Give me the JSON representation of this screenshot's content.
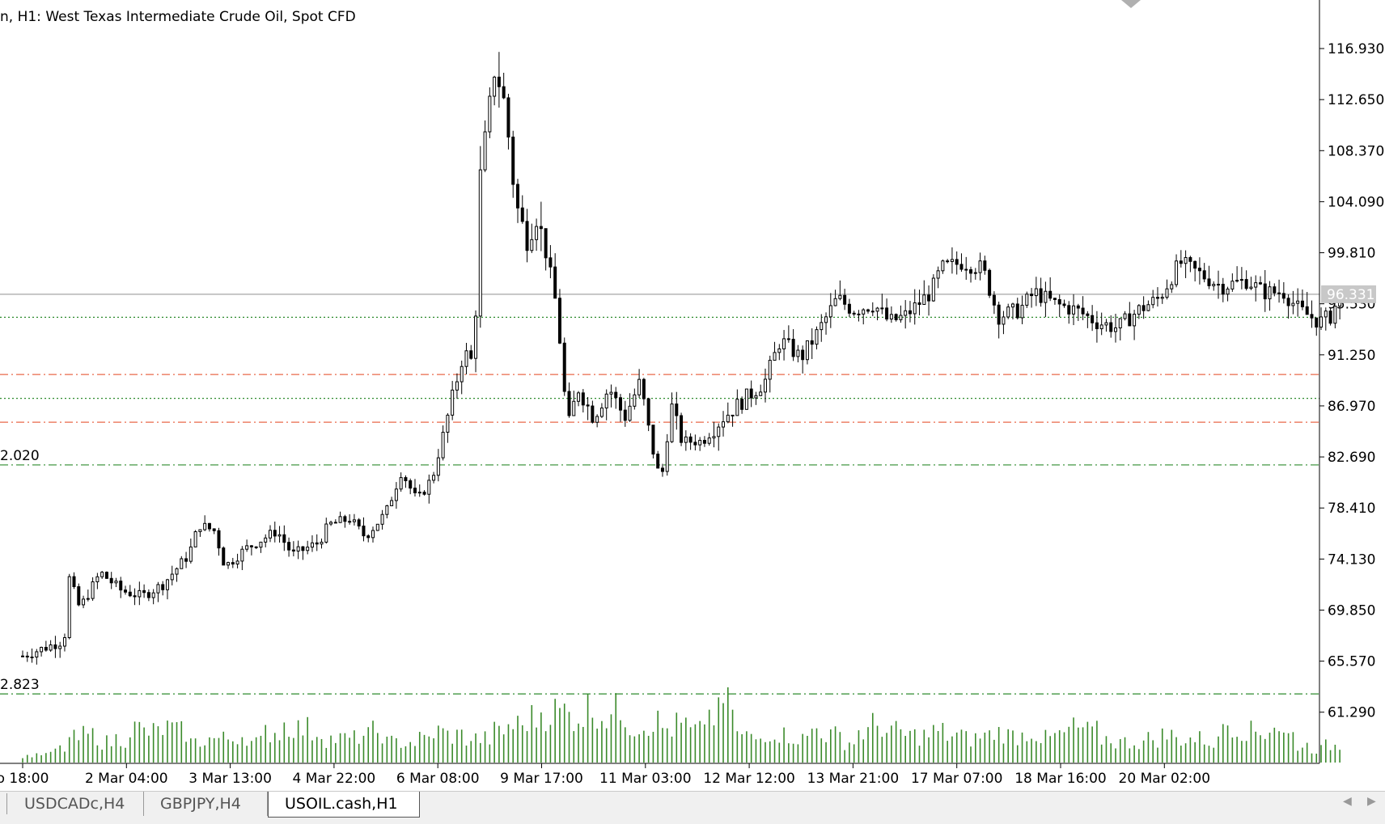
{
  "chart_title": "n, H1:  West Texas Intermediate Crude Oil, Spot CFD",
  "tabs": [
    {
      "label": "USDCADc,H4",
      "active": false
    },
    {
      "label": "GBPJPY,H4",
      "active": false
    },
    {
      "label": "USOIL.cash,H1",
      "active": true
    }
  ],
  "current_price_label": "96.331",
  "level_labels": [
    {
      "text": "2.020",
      "price": 82.02
    },
    {
      "text": "2.823",
      "price": 62.823
    }
  ],
  "chart_data": {
    "type": "candlestick",
    "symbol": "USOIL.cash",
    "timeframe": "H1",
    "title": "n, H1:  West Texas Intermediate Crude Oil, Spot CFD",
    "ylim": [
      57.0,
      121.0
    ],
    "y_ticks": [
      116.93,
      112.65,
      108.37,
      104.09,
      99.81,
      95.53,
      91.25,
      86.97,
      82.69,
      78.41,
      74.13,
      69.85,
      65.57,
      61.29
    ],
    "y_tick_labels": [
      "116.930",
      "112.650",
      "108.370",
      "104.090",
      "99.810",
      "95.530",
      "91.250",
      "86.970",
      "82.690",
      "78.410",
      "74.130",
      "69.850",
      "65.570",
      "61.290"
    ],
    "x_tick_labels": [
      "o 18:00",
      "2 Mar 04:00",
      "3 Mar 13:00",
      "4 Mar 22:00",
      "6 Mar 08:00",
      "9 Mar 17:00",
      "11 Mar 03:00",
      "12 Mar 12:00",
      "13 Mar 21:00",
      "17 Mar 07:00",
      "18 Mar 16:00",
      "20 Mar 02:00"
    ],
    "x_tick_positions": [
      0.0,
      1.0,
      2.0,
      3.0,
      4.0,
      5.0,
      6.0,
      7.0,
      8.0,
      9.0,
      10.0,
      11.0
    ],
    "current_price": 96.331,
    "horizontal_lines": [
      {
        "price": 94.4,
        "style": "dotted",
        "color": "#2e8b2e"
      },
      {
        "price": 89.6,
        "style": "dashdot",
        "color": "#e8694a"
      },
      {
        "price": 87.6,
        "style": "dotted",
        "color": "#2e8b2e"
      },
      {
        "price": 85.6,
        "style": "dashdot",
        "color": "#e8694a"
      },
      {
        "price": 82.02,
        "style": "dashdot",
        "color": "#2e8b2e"
      },
      {
        "price": 62.823,
        "style": "dashdot",
        "color": "#2e8b2e"
      }
    ],
    "price_path": [
      [
        0.0,
        66.0
      ],
      [
        0.4,
        67.3
      ],
      [
        0.45,
        72.5
      ],
      [
        0.55,
        70.0
      ],
      [
        0.75,
        73.0
      ],
      [
        0.95,
        71.5
      ],
      [
        1.15,
        71.0
      ],
      [
        1.35,
        72.0
      ],
      [
        1.6,
        74.5
      ],
      [
        1.7,
        77.0
      ],
      [
        1.85,
        76.5
      ],
      [
        1.95,
        73.5
      ],
      [
        2.15,
        75.0
      ],
      [
        2.45,
        76.5
      ],
      [
        2.6,
        74.5
      ],
      [
        2.85,
        75.5
      ],
      [
        2.95,
        77.0
      ],
      [
        3.15,
        77.5
      ],
      [
        3.3,
        76.0
      ],
      [
        3.5,
        78.0
      ],
      [
        3.65,
        81.5
      ],
      [
        3.8,
        79.0
      ],
      [
        3.95,
        81.0
      ],
      [
        4.05,
        84.5
      ],
      [
        4.15,
        88.0
      ],
      [
        4.25,
        91.5
      ],
      [
        4.35,
        90.5
      ],
      [
        4.4,
        105.5
      ],
      [
        4.5,
        112.0
      ],
      [
        4.55,
        115.5
      ],
      [
        4.65,
        112.0
      ],
      [
        4.75,
        104.0
      ],
      [
        4.85,
        101.0
      ],
      [
        4.95,
        103.0
      ],
      [
        5.05,
        99.5
      ],
      [
        5.15,
        95.0
      ],
      [
        5.25,
        85.0
      ],
      [
        5.35,
        88.5
      ],
      [
        5.5,
        86.0
      ],
      [
        5.65,
        88.5
      ],
      [
        5.8,
        86.0
      ],
      [
        5.95,
        89.0
      ],
      [
        6.05,
        84.0
      ],
      [
        6.15,
        80.5
      ],
      [
        6.25,
        87.0
      ],
      [
        6.35,
        84.0
      ],
      [
        6.55,
        84.0
      ],
      [
        6.75,
        86.0
      ],
      [
        6.95,
        87.5
      ],
      [
        7.15,
        89.0
      ],
      [
        7.3,
        92.5
      ],
      [
        7.5,
        91.0
      ],
      [
        7.65,
        93.0
      ],
      [
        7.85,
        96.0
      ],
      [
        8.0,
        95.0
      ],
      [
        8.2,
        95.5
      ],
      [
        8.35,
        94.0
      ],
      [
        8.5,
        94.5
      ],
      [
        8.75,
        96.5
      ],
      [
        8.85,
        98.5
      ],
      [
        9.05,
        99.0
      ],
      [
        9.25,
        98.5
      ],
      [
        9.4,
        94.5
      ],
      [
        9.6,
        95.0
      ],
      [
        9.75,
        96.5
      ],
      [
        9.95,
        95.5
      ],
      [
        10.15,
        95.0
      ],
      [
        10.35,
        94.0
      ],
      [
        10.55,
        93.5
      ],
      [
        10.75,
        95.0
      ],
      [
        10.95,
        96.0
      ],
      [
        11.15,
        99.0
      ],
      [
        11.35,
        98.0
      ],
      [
        11.55,
        97.0
      ],
      [
        11.8,
        97.5
      ],
      [
        11.95,
        96.5
      ],
      [
        12.15,
        96.5
      ],
      [
        12.3,
        95.0
      ],
      [
        12.5,
        94.0
      ],
      [
        12.6,
        94.5
      ],
      [
        12.7,
        96.331
      ]
    ],
    "volume_relative": [
      0.1,
      0.12,
      0.2,
      0.35,
      0.4,
      0.3,
      0.35,
      0.5,
      0.45,
      0.5,
      0.45,
      0.3,
      0.35,
      0.35,
      0.4,
      0.3,
      0.45,
      0.55,
      0.5,
      0.45,
      0.35,
      0.35,
      0.4,
      0.45,
      0.3,
      0.3,
      0.35,
      0.45,
      0.4,
      0.35,
      0.35,
      0.45,
      0.55,
      0.65,
      0.75,
      0.75,
      0.7,
      0.8,
      0.7,
      0.75,
      0.55,
      0.6,
      0.5,
      0.55,
      0.45,
      0.7,
      0.9,
      0.4,
      0.35,
      0.45,
      0.4,
      0.35,
      0.5,
      0.4,
      0.3,
      0.45,
      0.55,
      0.45,
      0.4,
      0.4,
      0.45,
      0.4,
      0.35,
      0.4,
      0.45,
      0.4,
      0.45,
      0.35,
      0.4,
      0.5,
      0.45,
      0.35,
      0.3,
      0.3,
      0.35,
      0.4,
      0.35,
      0.35,
      0.3,
      0.6,
      0.5,
      0.45,
      0.55,
      0.4,
      0.25,
      0.2,
      0.25,
      0.3
    ]
  }
}
